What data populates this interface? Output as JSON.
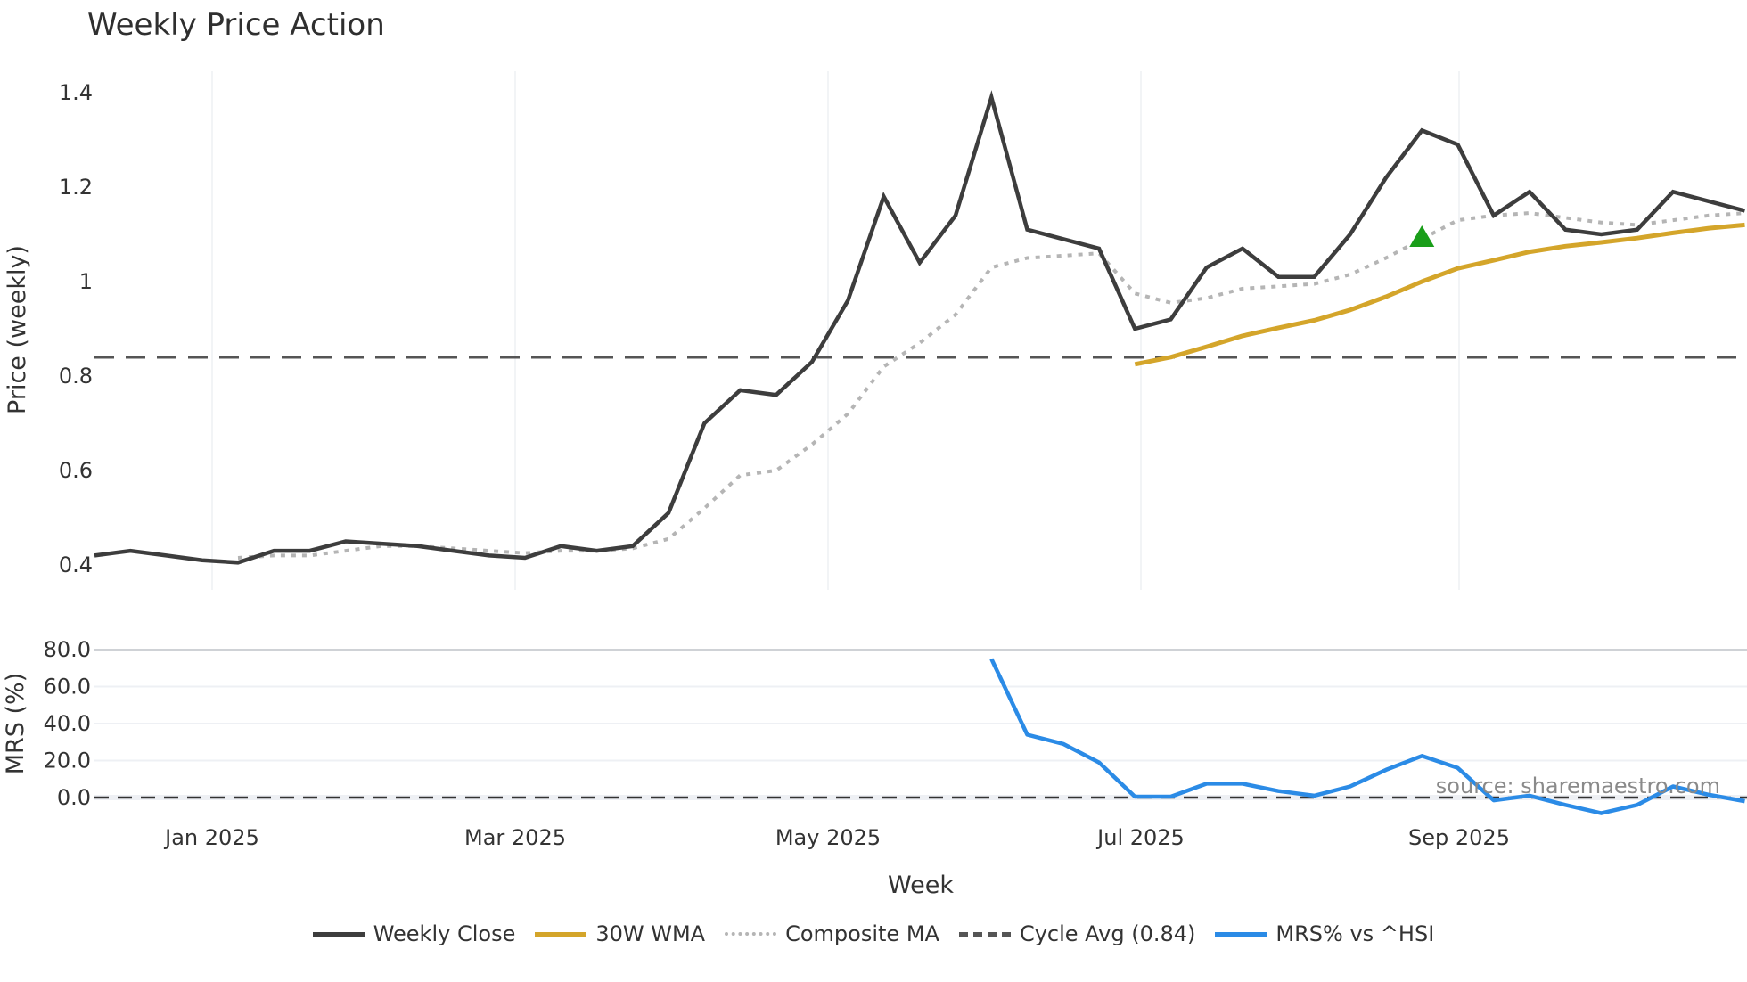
{
  "title": "Weekly Price Action",
  "source": "source: sharemaestro.com",
  "legend": [
    {
      "label": "Weekly Close",
      "color": "#3d3d3d",
      "style": "solid"
    },
    {
      "label": "30W WMA",
      "color": "#d4a52a",
      "style": "solid"
    },
    {
      "label": "Composite MA",
      "color": "#b5b5b5",
      "style": "dotted"
    },
    {
      "label": "Cycle Avg (0.84)",
      "color": "#555555",
      "style": "dashed"
    },
    {
      "label": "MRS% vs ^HSI",
      "color": "#2b8be6",
      "style": "solid"
    }
  ],
  "colors": {
    "close": "#3d3d3d",
    "wma": "#d4a52a",
    "composite": "#b5b5b5",
    "cycle": "#555555",
    "mrs": "#2b8be6",
    "signal": "#1a9e1a",
    "grid": "#eef0f4"
  },
  "chart_data": [
    {
      "type": "line",
      "title": "Weekly Price Action",
      "xlabel": "Week",
      "ylabel": "Price (weekly)",
      "ylim": [
        0.37,
        1.44
      ],
      "yticks": [
        "0.4",
        "0.6",
        "0.8",
        "1",
        "1.2",
        "1.4"
      ],
      "xticks": [
        "Jan 2025",
        "Mar 2025",
        "May 2025",
        "Jul 2025",
        "Sep 2025"
      ],
      "grid": true,
      "legend_position": "bottom",
      "x_start_index": 0,
      "series": [
        {
          "name": "Weekly Close",
          "values": [
            0.42,
            0.43,
            0.42,
            0.41,
            0.405,
            0.43,
            0.43,
            0.45,
            0.445,
            0.44,
            0.43,
            0.42,
            0.415,
            0.44,
            0.43,
            0.44,
            0.51,
            0.7,
            0.77,
            0.76,
            0.83,
            0.96,
            1.18,
            1.04,
            1.14,
            1.39,
            1.11,
            1.09,
            1.07,
            0.9,
            0.92,
            1.03,
            1.07,
            1.01,
            1.01,
            1.1,
            1.22,
            1.32,
            1.29,
            1.14,
            1.19,
            1.11,
            1.1,
            1.11,
            1.19,
            1.17,
            1.15
          ]
        },
        {
          "name": "Composite MA",
          "start_index": 4,
          "values": [
            0.415,
            0.42,
            0.42,
            0.43,
            0.44,
            0.44,
            0.435,
            0.43,
            0.425,
            0.43,
            0.43,
            0.435,
            0.455,
            0.52,
            0.59,
            0.6,
            0.655,
            0.72,
            0.82,
            0.87,
            0.93,
            1.03,
            1.05,
            1.055,
            1.06,
            0.975,
            0.955,
            0.965,
            0.985,
            0.99,
            0.995,
            1.015,
            1.05,
            1.09,
            1.13,
            1.14,
            1.145,
            1.135,
            1.125,
            1.12,
            1.13,
            1.14,
            1.145
          ]
        },
        {
          "name": "30W WMA",
          "start_index": 29,
          "values": [
            0.825,
            0.84,
            0.862,
            0.885,
            0.902,
            0.918,
            0.94,
            0.968,
            1.0,
            1.028,
            1.045,
            1.063,
            1.075,
            1.083,
            1.092,
            1.103,
            1.113,
            1.12
          ]
        },
        {
          "name": "Cycle Avg (0.84)",
          "constant": 0.84
        }
      ],
      "annotations": [
        {
          "type": "triangle-up",
          "index": 37,
          "value": 1.1,
          "color": "#1a9e1a"
        }
      ]
    },
    {
      "type": "line",
      "ylabel": "MRS (%)",
      "ylim": [
        -10,
        80
      ],
      "yticks": [
        "0.0",
        "20.0",
        "40.0",
        "60.0",
        "80.0"
      ],
      "series": [
        {
          "name": "MRS% vs ^HSI",
          "start_index": 25,
          "values": [
            75,
            34,
            29,
            19,
            0.5,
            0.5,
            7.5,
            7.5,
            3.5,
            1,
            6,
            15,
            22.5,
            16,
            -1.5,
            1,
            -4,
            -8.5,
            -4,
            6,
            1.5,
            -2
          ]
        },
        {
          "name": "zero",
          "constant": 0
        }
      ]
    }
  ]
}
